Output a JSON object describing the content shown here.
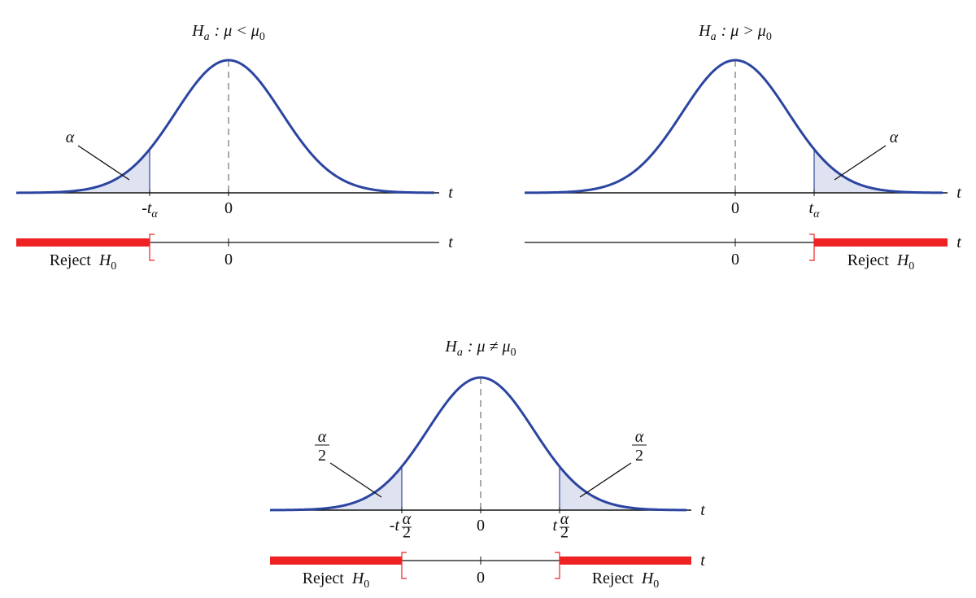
{
  "panels": [
    {
      "title": {
        "symbol": "H",
        "symbol_sub": "a",
        "relation": ": μ < μ",
        "relation_sub": "0"
      },
      "curve_axis_label": "t",
      "curve_zero": "0",
      "line_axis_label": "t",
      "line_zero": "0",
      "tails": [
        {
          "area_label": {
            "num": "α"
          },
          "critical_label": {
            "symbol": "-t",
            "sub": "α"
          },
          "reject_label": {
            "word": "Reject",
            "symbol": "H",
            "sub": "0"
          }
        }
      ]
    },
    {
      "title": {
        "symbol": "H",
        "symbol_sub": "a",
        "relation": ": μ > μ",
        "relation_sub": "0"
      },
      "curve_axis_label": "t",
      "curve_zero": "0",
      "line_axis_label": "t",
      "line_zero": "0",
      "tails": [
        {
          "area_label": {
            "num": "α"
          },
          "critical_label": {
            "symbol": "t",
            "sub": "α"
          },
          "reject_label": {
            "word": "Reject",
            "symbol": "H",
            "sub": "0"
          }
        }
      ]
    },
    {
      "title": {
        "symbol": "H",
        "symbol_sub": "a",
        "relation": ": μ ≠ μ",
        "relation_sub": "0"
      },
      "curve_axis_label": "t",
      "curve_zero": "0",
      "line_axis_label": "t",
      "line_zero": "0",
      "tails": [
        {
          "area_label": {
            "num": "α",
            "den": "2"
          },
          "critical_label": {
            "symbol": "-t",
            "sub": "α",
            "sub_den": "2"
          },
          "reject_label": {
            "word": "Reject",
            "symbol": "H",
            "sub": "0"
          }
        },
        {
          "area_label": {
            "num": "α",
            "den": "2"
          },
          "critical_label": {
            "symbol": "t",
            "sub": "α",
            "sub_den": "2"
          },
          "reject_label": {
            "word": "Reject",
            "symbol": "H",
            "sub": "0"
          }
        }
      ]
    }
  ]
}
